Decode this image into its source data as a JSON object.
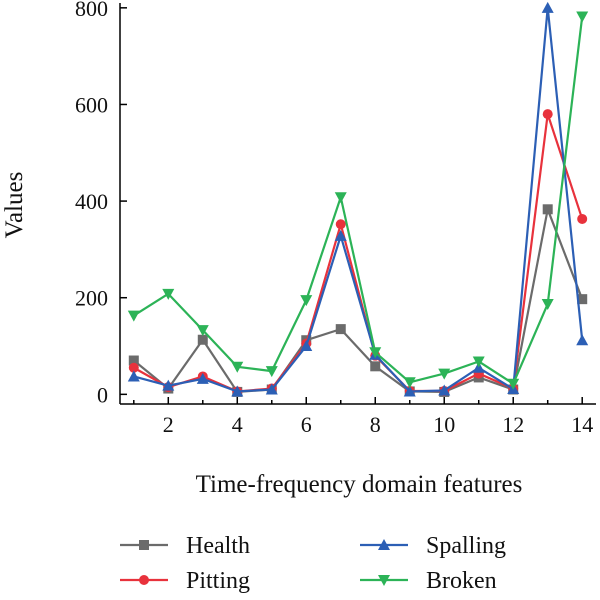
{
  "chart_data": {
    "type": "line",
    "title": "",
    "xlabel": "Time-frequency domain features",
    "ylabel": "Values",
    "xlim": [
      0.6,
      14.4
    ],
    "ylim": [
      -20,
      810
    ],
    "xticks": [
      2,
      4,
      6,
      8,
      10,
      12,
      14
    ],
    "yticks": [
      0,
      200,
      400,
      600,
      800
    ],
    "grid": false,
    "legend_position": "bottom",
    "x": [
      1,
      2,
      3,
      4,
      5,
      6,
      7,
      8,
      9,
      10,
      11,
      12,
      13,
      14
    ],
    "series": [
      {
        "name": "Health",
        "color": "#6b6b6b",
        "marker": "square",
        "values": [
          70,
          12,
          113,
          5,
          10,
          112,
          135,
          58,
          6,
          5,
          35,
          10,
          383,
          197
        ]
      },
      {
        "name": "Pitting",
        "color": "#e8323c",
        "marker": "circle",
        "values": [
          55,
          15,
          37,
          6,
          12,
          105,
          352,
          80,
          7,
          7,
          43,
          12,
          580,
          363
        ]
      },
      {
        "name": "Spalling",
        "color": "#2c5fb5",
        "marker": "triangle-up",
        "values": [
          37,
          18,
          32,
          6,
          10,
          100,
          328,
          82,
          6,
          8,
          55,
          11,
          800,
          112
        ]
      },
      {
        "name": "Broken",
        "color": "#2cb357",
        "marker": "triangle-down",
        "values": [
          163,
          208,
          133,
          57,
          48,
          195,
          408,
          87,
          25,
          43,
          68,
          22,
          187,
          782
        ]
      }
    ]
  }
}
